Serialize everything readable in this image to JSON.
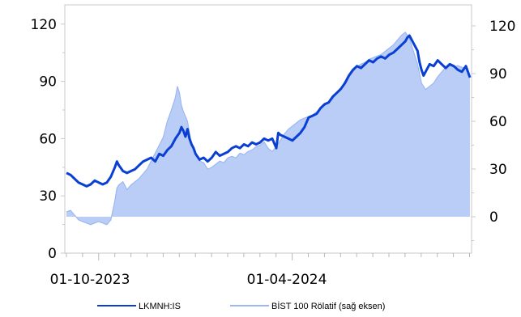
{
  "chart_data": {
    "type": "line",
    "x_tick_labels": [
      "01-10-2023",
      "01-04-2024"
    ],
    "left_axis": {
      "ticks": [
        0,
        30,
        60,
        90,
        120
      ],
      "ylim": [
        0,
        125
      ]
    },
    "right_axis": {
      "ticks": [
        0,
        30,
        60,
        90,
        120
      ],
      "ylim": [
        -22,
        128
      ]
    },
    "grid": false,
    "legend_position": "bottom",
    "series": [
      {
        "name": "LKMNH:IS",
        "axis": "left",
        "kind": "line",
        "color": "#0a3fd4",
        "points": [
          [
            0.0,
            42
          ],
          [
            0.01,
            41
          ],
          [
            0.02,
            39
          ],
          [
            0.03,
            37
          ],
          [
            0.04,
            36
          ],
          [
            0.05,
            35
          ],
          [
            0.06,
            36
          ],
          [
            0.07,
            38
          ],
          [
            0.08,
            37
          ],
          [
            0.09,
            36
          ],
          [
            0.1,
            37
          ],
          [
            0.11,
            40
          ],
          [
            0.12,
            45
          ],
          [
            0.125,
            48
          ],
          [
            0.13,
            46
          ],
          [
            0.14,
            43
          ],
          [
            0.15,
            42
          ],
          [
            0.16,
            43
          ],
          [
            0.17,
            44
          ],
          [
            0.18,
            46
          ],
          [
            0.19,
            48
          ],
          [
            0.2,
            49
          ],
          [
            0.21,
            50
          ],
          [
            0.22,
            48
          ],
          [
            0.23,
            52
          ],
          [
            0.24,
            51
          ],
          [
            0.25,
            54
          ],
          [
            0.26,
            56
          ],
          [
            0.27,
            60
          ],
          [
            0.28,
            63
          ],
          [
            0.285,
            66
          ],
          [
            0.29,
            64
          ],
          [
            0.295,
            61
          ],
          [
            0.3,
            65
          ],
          [
            0.305,
            60
          ],
          [
            0.31,
            57
          ],
          [
            0.315,
            55
          ],
          [
            0.32,
            52
          ],
          [
            0.33,
            49
          ],
          [
            0.34,
            50
          ],
          [
            0.35,
            48
          ],
          [
            0.36,
            50
          ],
          [
            0.37,
            53
          ],
          [
            0.38,
            51
          ],
          [
            0.39,
            52
          ],
          [
            0.4,
            53
          ],
          [
            0.41,
            55
          ],
          [
            0.42,
            56
          ],
          [
            0.43,
            55
          ],
          [
            0.44,
            57
          ],
          [
            0.45,
            56
          ],
          [
            0.46,
            58
          ],
          [
            0.47,
            57
          ],
          [
            0.48,
            58
          ],
          [
            0.49,
            60
          ],
          [
            0.5,
            59
          ],
          [
            0.51,
            60
          ],
          [
            0.52,
            55
          ],
          [
            0.525,
            63
          ],
          [
            0.53,
            62
          ],
          [
            0.54,
            61
          ],
          [
            0.55,
            60
          ],
          [
            0.56,
            59
          ],
          [
            0.57,
            61
          ],
          [
            0.58,
            63
          ],
          [
            0.59,
            66
          ],
          [
            0.6,
            71
          ],
          [
            0.61,
            72
          ],
          [
            0.62,
            73
          ],
          [
            0.63,
            76
          ],
          [
            0.64,
            78
          ],
          [
            0.65,
            79
          ],
          [
            0.66,
            82
          ],
          [
            0.67,
            84
          ],
          [
            0.68,
            86
          ],
          [
            0.69,
            89
          ],
          [
            0.7,
            93
          ],
          [
            0.71,
            96
          ],
          [
            0.72,
            98
          ],
          [
            0.73,
            97
          ],
          [
            0.74,
            99
          ],
          [
            0.75,
            101
          ],
          [
            0.76,
            100
          ],
          [
            0.77,
            102
          ],
          [
            0.78,
            103
          ],
          [
            0.79,
            102
          ],
          [
            0.8,
            104
          ],
          [
            0.81,
            105
          ],
          [
            0.82,
            107
          ],
          [
            0.83,
            109
          ],
          [
            0.84,
            111
          ],
          [
            0.845,
            113
          ],
          [
            0.85,
            114
          ],
          [
            0.855,
            112
          ],
          [
            0.86,
            110
          ],
          [
            0.87,
            106
          ],
          [
            0.875,
            100
          ],
          [
            0.88,
            96
          ],
          [
            0.885,
            93
          ],
          [
            0.89,
            95
          ],
          [
            0.9,
            99
          ],
          [
            0.91,
            98
          ],
          [
            0.92,
            101
          ],
          [
            0.93,
            99
          ],
          [
            0.94,
            97
          ],
          [
            0.95,
            99
          ],
          [
            0.96,
            98
          ],
          [
            0.97,
            96
          ],
          [
            0.98,
            95
          ],
          [
            0.99,
            98
          ],
          [
            1.0,
            92
          ]
        ]
      },
      {
        "name": "BİST 100 Rölatif (sağ eksen)",
        "axis": "right",
        "kind": "area",
        "color": "#9db7f0",
        "fill_color": "#b9cdf7",
        "baseline": 0,
        "points": [
          [
            0.0,
            3
          ],
          [
            0.01,
            4
          ],
          [
            0.02,
            1
          ],
          [
            0.03,
            -2
          ],
          [
            0.04,
            -3
          ],
          [
            0.05,
            -4
          ],
          [
            0.06,
            -5
          ],
          [
            0.07,
            -4
          ],
          [
            0.08,
            -3
          ],
          [
            0.09,
            -4
          ],
          [
            0.1,
            -5
          ],
          [
            0.11,
            -2
          ],
          [
            0.12,
            10
          ],
          [
            0.125,
            18
          ],
          [
            0.13,
            20
          ],
          [
            0.14,
            22
          ],
          [
            0.15,
            17
          ],
          [
            0.16,
            20
          ],
          [
            0.17,
            22
          ],
          [
            0.18,
            24
          ],
          [
            0.19,
            27
          ],
          [
            0.2,
            30
          ],
          [
            0.21,
            35
          ],
          [
            0.22,
            40
          ],
          [
            0.23,
            45
          ],
          [
            0.24,
            50
          ],
          [
            0.25,
            60
          ],
          [
            0.26,
            67
          ],
          [
            0.27,
            75
          ],
          [
            0.275,
            82
          ],
          [
            0.28,
            78
          ],
          [
            0.285,
            70
          ],
          [
            0.29,
            66
          ],
          [
            0.3,
            60
          ],
          [
            0.31,
            45
          ],
          [
            0.32,
            40
          ],
          [
            0.33,
            35
          ],
          [
            0.34,
            34
          ],
          [
            0.35,
            30
          ],
          [
            0.36,
            31
          ],
          [
            0.37,
            33
          ],
          [
            0.38,
            35
          ],
          [
            0.39,
            34
          ],
          [
            0.4,
            37
          ],
          [
            0.41,
            38
          ],
          [
            0.42,
            37
          ],
          [
            0.43,
            40
          ],
          [
            0.44,
            39
          ],
          [
            0.45,
            41
          ],
          [
            0.46,
            42
          ],
          [
            0.47,
            44
          ],
          [
            0.48,
            45
          ],
          [
            0.49,
            47
          ],
          [
            0.5,
            43
          ],
          [
            0.51,
            41
          ],
          [
            0.52,
            44
          ],
          [
            0.53,
            48
          ],
          [
            0.54,
            52
          ],
          [
            0.55,
            55
          ],
          [
            0.56,
            57
          ],
          [
            0.57,
            59
          ],
          [
            0.58,
            61
          ],
          [
            0.59,
            62
          ],
          [
            0.6,
            63
          ],
          [
            0.61,
            64
          ],
          [
            0.62,
            66
          ],
          [
            0.63,
            68
          ],
          [
            0.64,
            70
          ],
          [
            0.65,
            72
          ],
          [
            0.66,
            74
          ],
          [
            0.67,
            78
          ],
          [
            0.68,
            81
          ],
          [
            0.69,
            85
          ],
          [
            0.7,
            88
          ],
          [
            0.71,
            91
          ],
          [
            0.72,
            94
          ],
          [
            0.73,
            96
          ],
          [
            0.74,
            97
          ],
          [
            0.75,
            99
          ],
          [
            0.76,
            100
          ],
          [
            0.77,
            101
          ],
          [
            0.78,
            102
          ],
          [
            0.79,
            104
          ],
          [
            0.8,
            106
          ],
          [
            0.81,
            108
          ],
          [
            0.82,
            111
          ],
          [
            0.83,
            114
          ],
          [
            0.84,
            116
          ],
          [
            0.845,
            114
          ],
          [
            0.85,
            112
          ],
          [
            0.86,
            104
          ],
          [
            0.87,
            96
          ],
          [
            0.875,
            90
          ],
          [
            0.88,
            84
          ],
          [
            0.89,
            80
          ],
          [
            0.9,
            82
          ],
          [
            0.91,
            84
          ],
          [
            0.92,
            88
          ],
          [
            0.93,
            91
          ],
          [
            0.94,
            94
          ],
          [
            0.95,
            95
          ],
          [
            0.96,
            94
          ],
          [
            0.97,
            95
          ],
          [
            0.98,
            94
          ],
          [
            0.99,
            93
          ],
          [
            1.0,
            88
          ]
        ]
      }
    ]
  }
}
